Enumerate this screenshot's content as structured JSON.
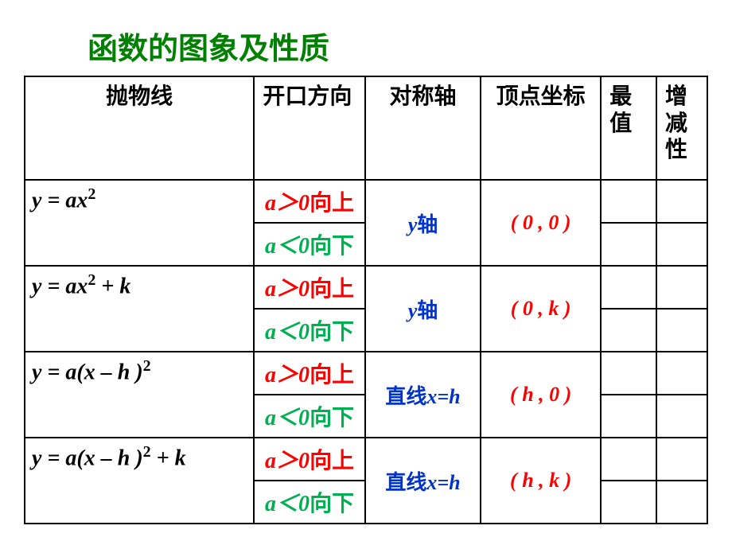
{
  "title": "函数的图象及性质",
  "headers": {
    "c1": "抛物线",
    "c2": "开口方向",
    "c3": "对称轴",
    "c4": "顶点坐标",
    "c5": "最值",
    "c6": "增减性"
  },
  "rows": [
    {
      "formula_html": "<i>y</i> = <i>ax</i><sup>2</sup>",
      "up_html": "<i>a</i>＞0<span class='cn'>向上</span>",
      "down_html": "<i>a</i>＜0<span class='cn'>向下</span>",
      "axis_html": "<i>y</i><span class='cn'>轴</span>",
      "vertex": "( 0 , 0 )"
    },
    {
      "formula_html": "<i>y</i> = <i>ax</i><sup>2</sup> + <i>k</i>",
      "up_html": "<i>a</i>＞0<span class='cn'>向上</span>",
      "down_html": "<i>a</i>＜0<span class='cn'>向下</span>",
      "axis_html": "<i>y</i><span class='cn'>轴</span>",
      "vertex": "( 0 , k )"
    },
    {
      "formula_html": "<i>y</i> = <i>a</i>(<i>x</i> – <i>h</i> )<sup>2</sup>",
      "up_html": "<i>a</i>＞0<span class='cn'>向上</span>",
      "down_html": "<i>a</i>＜0<span class='cn'>向下</span>",
      "axis_html": "<span class='cn'>直线</span><i>x</i>=<i>h</i>",
      "vertex": "( h , 0 )"
    },
    {
      "formula_html": "<i>y</i> = <i>a</i>(<i>x</i> – <i>h</i> )<sup>2</sup> + <i>k</i>",
      "up_html": "<i>a</i>＞0<span class='cn'>向上</span>",
      "down_html": "<i>a</i>＜0<span class='cn'>向下</span>",
      "axis_html": "<span class='cn'>直线</span><i>x</i>=<i>h</i>",
      "vertex": "( h , k )"
    }
  ],
  "colors": {
    "title": "#008000",
    "red": "#ff0000",
    "green": "#00b050",
    "blue": "#0033cc",
    "border": "#000000",
    "background": "#ffffff"
  }
}
